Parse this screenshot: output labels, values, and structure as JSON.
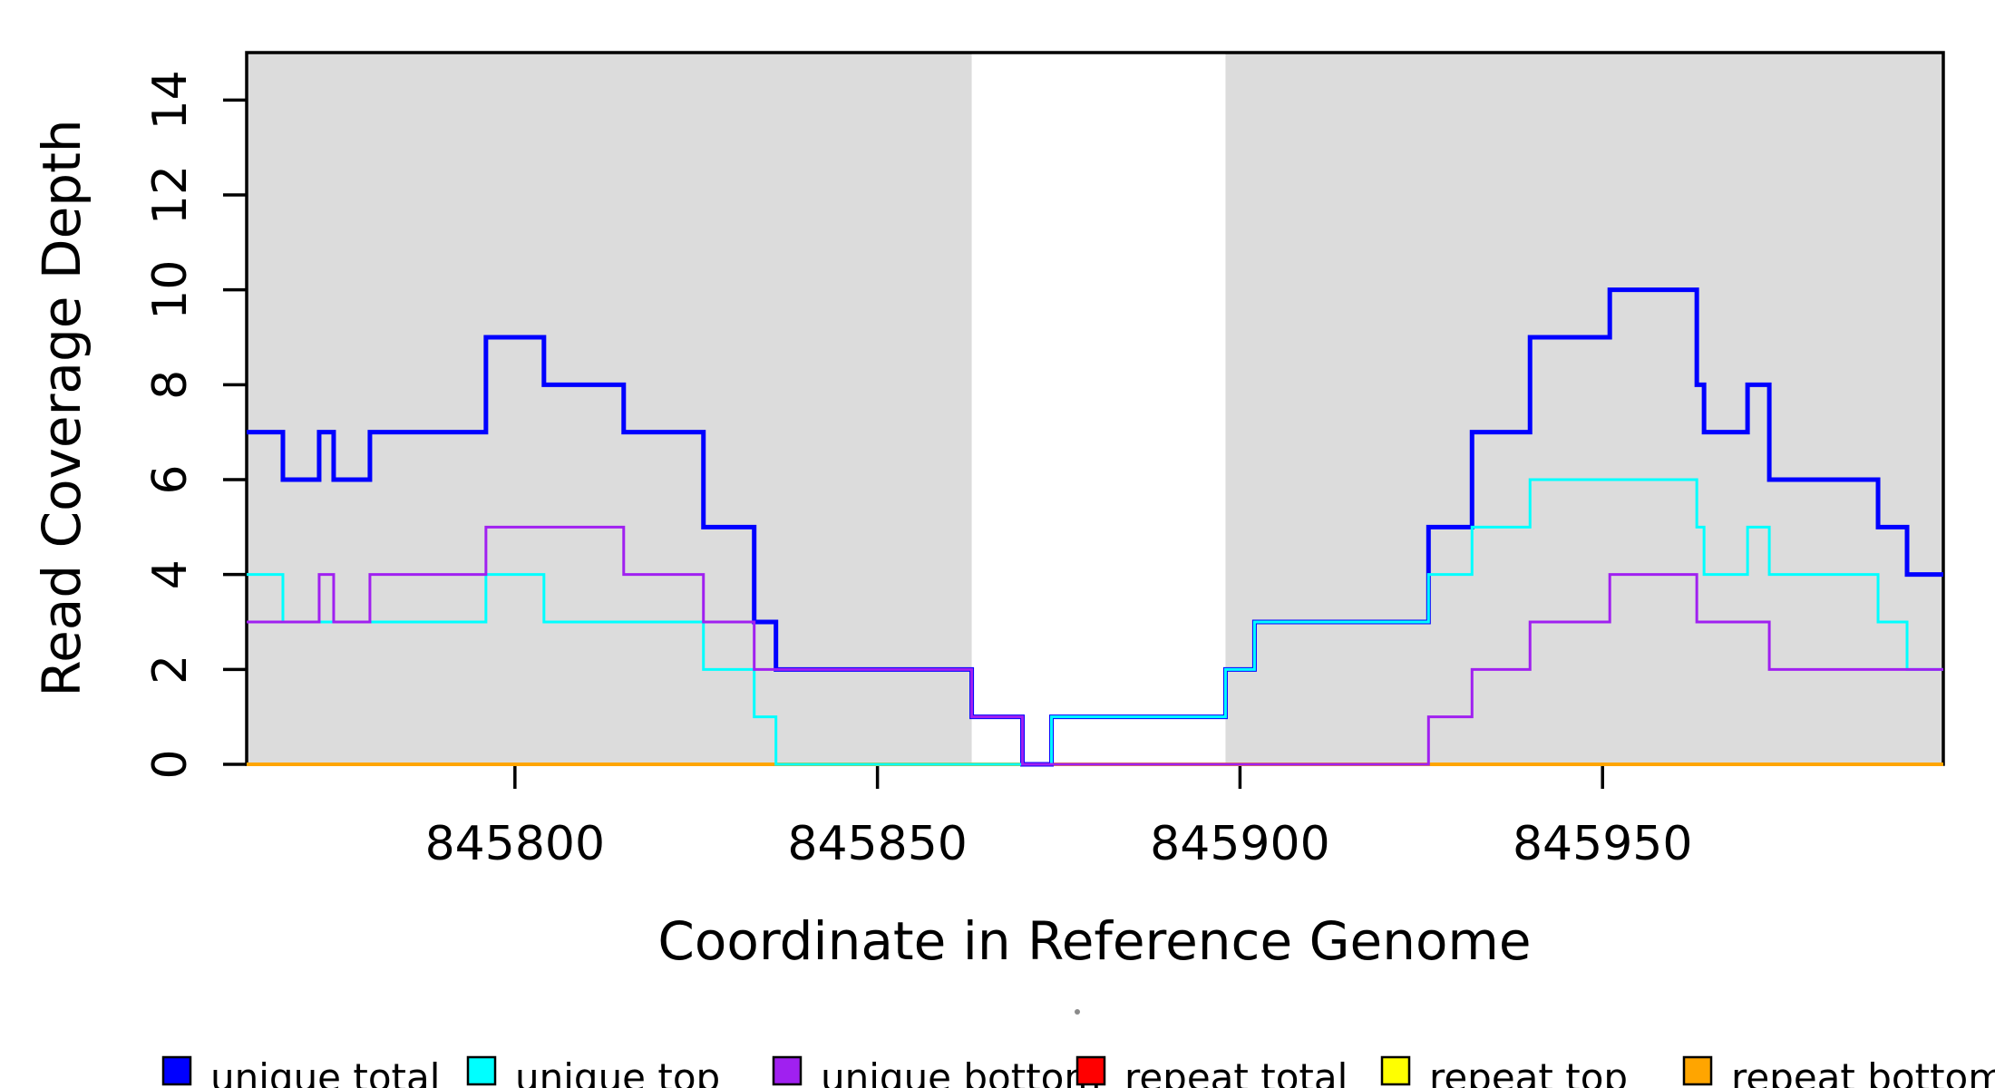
{
  "chart_data": {
    "type": "line",
    "subtype": "step-coverage",
    "title": "",
    "xlabel": "Coordinate in Reference Genome",
    "ylabel": "Read Coverage Depth",
    "xlim": [
      845763,
      845997
    ],
    "ylim": [
      0,
      15
    ],
    "x_ticks": [
      845800,
      845850,
      845900,
      845950
    ],
    "y_ticks": [
      0,
      2,
      4,
      6,
      8,
      10,
      12,
      14
    ],
    "grid": false,
    "legend_position": "bottom",
    "background_bands": {
      "color": "#DCDCDC",
      "regions": [
        [
          845763,
          845863
        ],
        [
          845898,
          845997
        ]
      ]
    },
    "series": [
      {
        "name": "repeat total",
        "color": "#FF0000",
        "width": 3,
        "steps": [
          [
            845763,
            0
          ]
        ]
      },
      {
        "name": "repeat top",
        "color": "#FFFF00",
        "width": 3,
        "steps": [
          [
            845763,
            0
          ]
        ]
      },
      {
        "name": "repeat bottom",
        "color": "#FFA500",
        "width": 4,
        "steps": [
          [
            845763,
            0
          ]
        ]
      },
      {
        "name": "unique total",
        "color": "#0000FF",
        "width": 5,
        "steps": [
          [
            845763,
            7
          ],
          [
            845768,
            6
          ],
          [
            845773,
            7
          ],
          [
            845775,
            6
          ],
          [
            845780,
            7
          ],
          [
            845796,
            9
          ],
          [
            845804,
            8
          ],
          [
            845815,
            7
          ],
          [
            845826,
            5
          ],
          [
            845833,
            3
          ],
          [
            845836,
            2
          ],
          [
            845863,
            1
          ],
          [
            845870,
            0
          ],
          [
            845874,
            1
          ],
          [
            845898,
            2
          ],
          [
            845902,
            3
          ],
          [
            845926,
            5
          ],
          [
            845932,
            7
          ],
          [
            845940,
            9
          ],
          [
            845951,
            10
          ],
          [
            845963,
            8
          ],
          [
            845964,
            7
          ],
          [
            845970,
            8
          ],
          [
            845973,
            6
          ],
          [
            845988,
            5
          ],
          [
            845992,
            4
          ]
        ]
      },
      {
        "name": "unique top",
        "color": "#00FFFF",
        "width": 3,
        "steps": [
          [
            845763,
            4
          ],
          [
            845768,
            3
          ],
          [
            845796,
            4
          ],
          [
            845804,
            3
          ],
          [
            845826,
            2
          ],
          [
            845833,
            1
          ],
          [
            845836,
            0
          ],
          [
            845874,
            1
          ],
          [
            845898,
            2
          ],
          [
            845902,
            3
          ],
          [
            845926,
            4
          ],
          [
            845932,
            5
          ],
          [
            845940,
            6
          ],
          [
            845963,
            5
          ],
          [
            845964,
            4
          ],
          [
            845970,
            5
          ],
          [
            845973,
            4
          ],
          [
            845988,
            3
          ],
          [
            845992,
            2
          ]
        ]
      },
      {
        "name": "unique bottom",
        "color": "#A020F0",
        "width": 3,
        "steps": [
          [
            845763,
            3
          ],
          [
            845773,
            4
          ],
          [
            845775,
            3
          ],
          [
            845780,
            4
          ],
          [
            845796,
            5
          ],
          [
            845815,
            4
          ],
          [
            845826,
            3
          ],
          [
            845833,
            2
          ],
          [
            845863,
            1
          ],
          [
            845870,
            0
          ],
          [
            845926,
            1
          ],
          [
            845932,
            2
          ],
          [
            845940,
            3
          ],
          [
            845951,
            4
          ],
          [
            845963,
            3
          ],
          [
            845973,
            2
          ]
        ]
      }
    ]
  },
  "legend": {
    "items": [
      {
        "label": "unique total",
        "color": "#0000FF"
      },
      {
        "label": "unique top",
        "color": "#00FFFF"
      },
      {
        "label": "unique bottom",
        "color": "#A020F0"
      },
      {
        "label": "repeat total",
        "color": "#FF0000"
      },
      {
        "label": "repeat top",
        "color": "#FFFF00"
      },
      {
        "label": "repeat bottom",
        "color": "#FFA500"
      }
    ]
  }
}
